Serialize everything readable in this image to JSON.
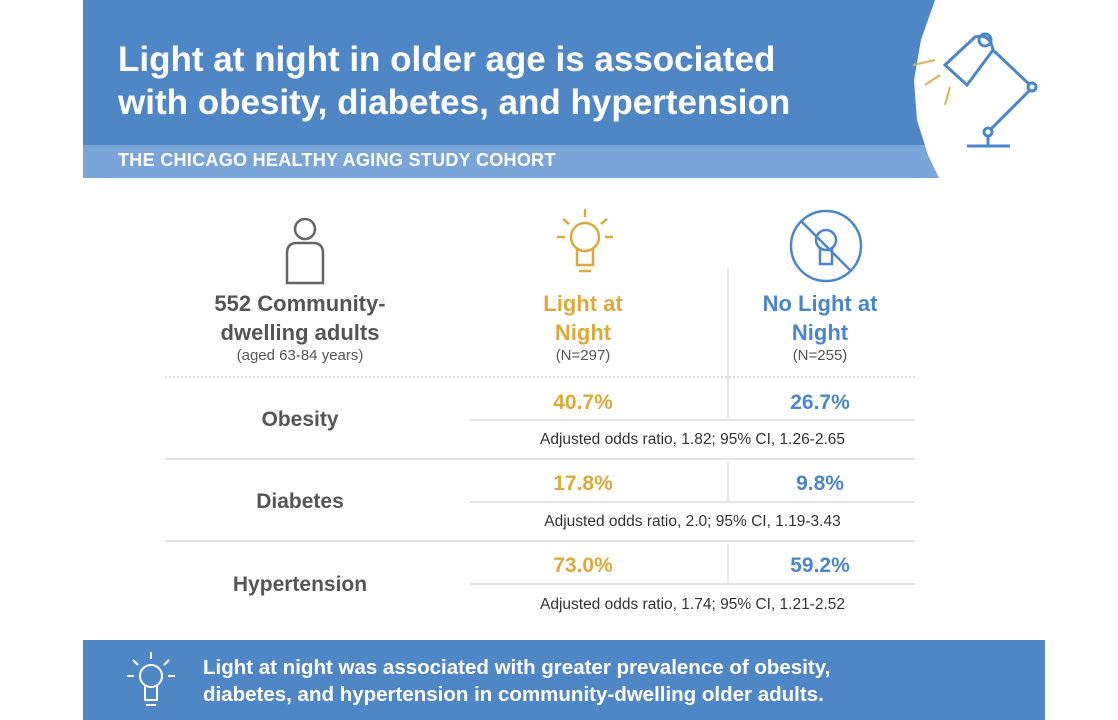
{
  "header": {
    "title_line1": "Light at night in older age is associated",
    "title_line2": "with obesity, diabetes, and hypertension",
    "subtitle": "THE CHICAGO HEALTHY AGING STUDY COHORT"
  },
  "cohort": {
    "line1": "552 Community-",
    "line2": "dwelling adults",
    "line3": "(aged 63-84 years)"
  },
  "columns": [
    {
      "line1": "Light at",
      "line2": "Night",
      "n": "(N=297)"
    },
    {
      "line1": "No Light at",
      "line2": "Night",
      "n": "(N=255)"
    }
  ],
  "rows": [
    {
      "label": "Obesity",
      "light": "40.7%",
      "no_light": "26.7%",
      "odds": "Adjusted odds ratio, 1.82; 95% CI, 1.26-2.65"
    },
    {
      "label": "Diabetes",
      "light": "17.8%",
      "no_light": "9.8%",
      "odds": "Adjusted odds ratio, 2.0; 95% CI, 1.19-3.43"
    },
    {
      "label": "Hypertension",
      "light": "73.0%",
      "no_light": "59.2%",
      "odds": "Adjusted odds ratio, 1.74; 95% CI, 1.21-2.52"
    }
  ],
  "footer": {
    "line1": "Light at night was associated with greater prevalence of obesity,",
    "line2": "diabetes, and hypertension in community-dwelling older adults."
  },
  "colors": {
    "blue": "#4f86c6",
    "gold": "#dea83a"
  }
}
